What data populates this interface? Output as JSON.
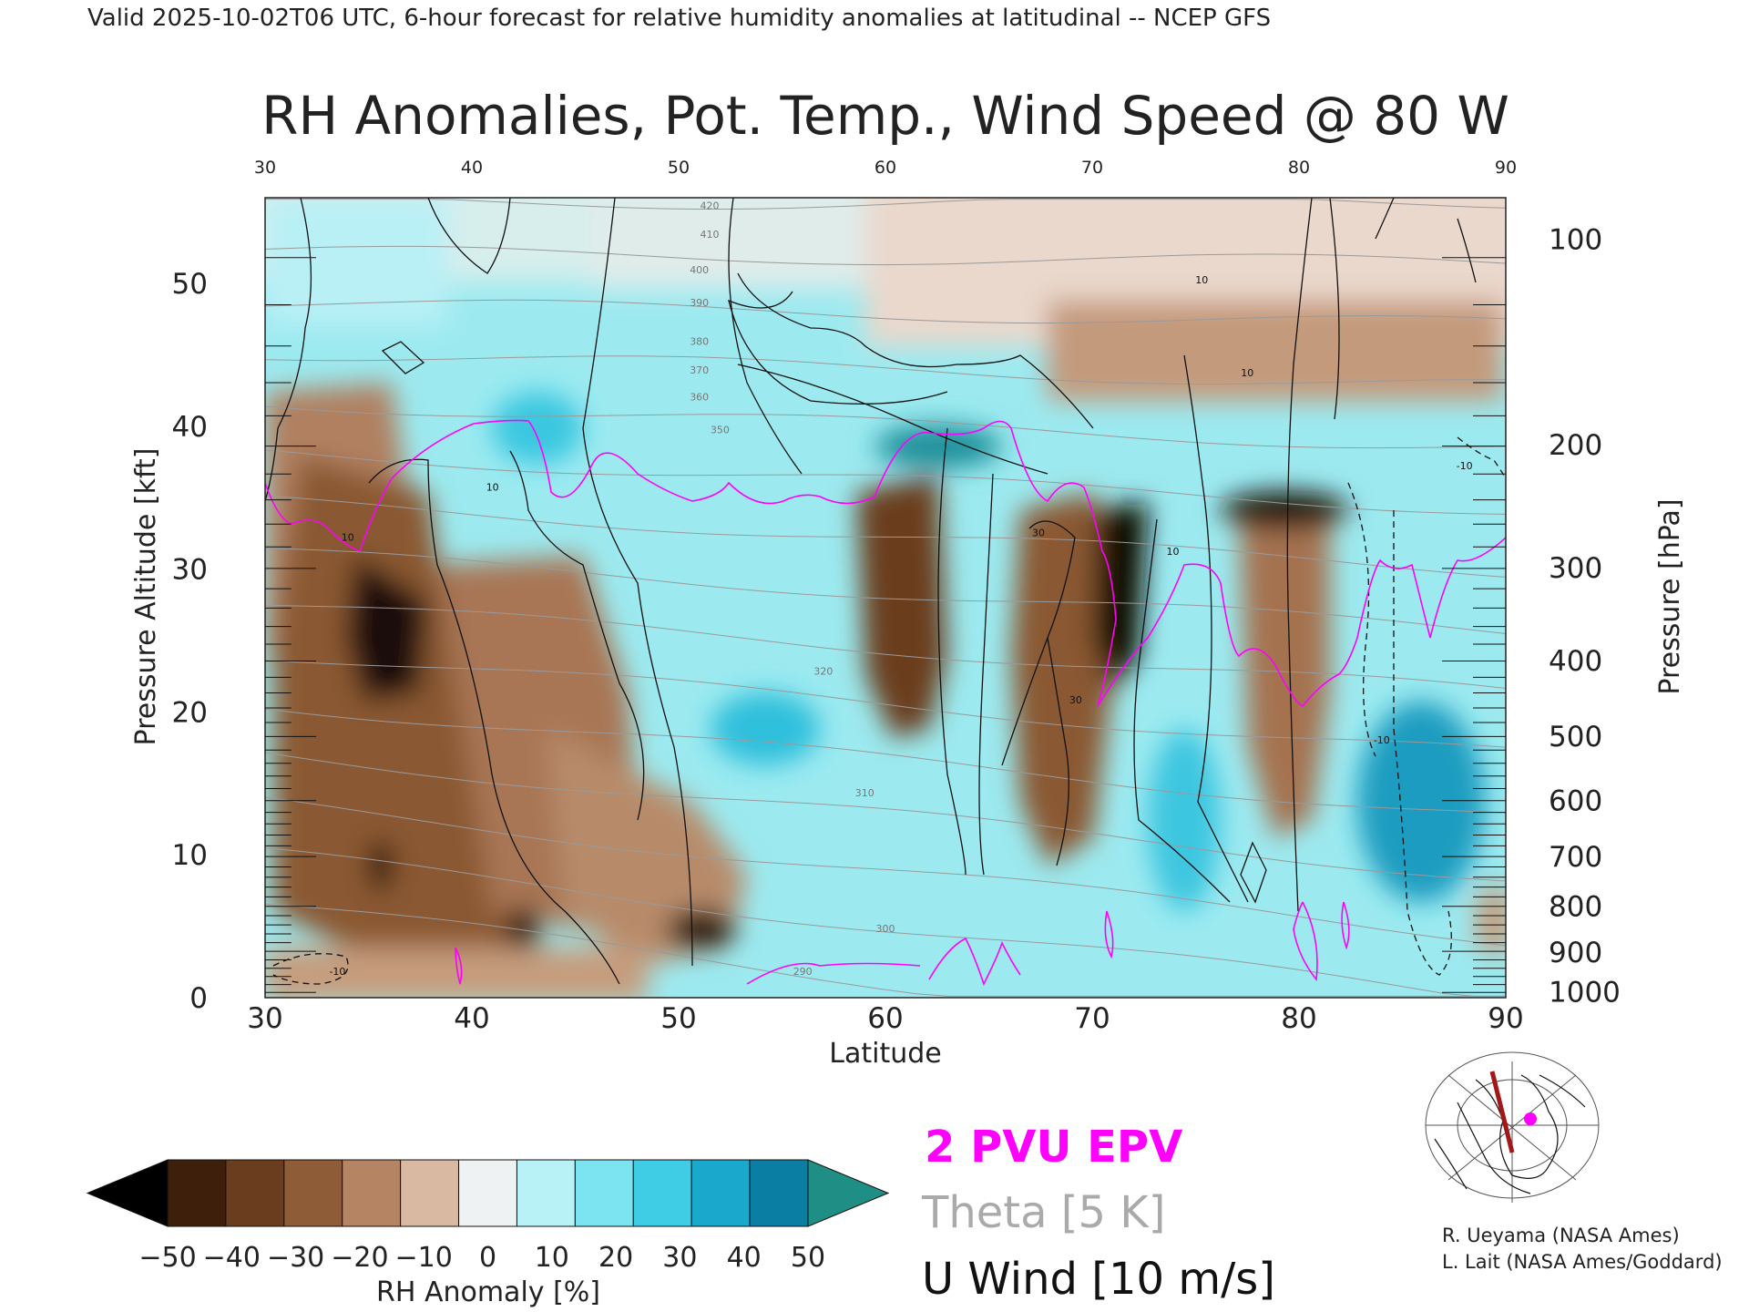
{
  "header": {
    "subtitle": "Valid 2025-10-02T06 UTC, 6-hour forecast for relative humidity anomalies at latitudinal -- NCEP GFS",
    "title": "RH Anomalies, Pot. Temp., Wind Speed @ 80 W"
  },
  "legend": {
    "epv": "2 PVU EPV",
    "theta": "Theta [5 K]",
    "uwind": "U Wind [10 m/s]",
    "epv_color": "#ff00ff",
    "theta_color": "#aaaaaa",
    "uwind_color": "#111111"
  },
  "credits": {
    "line1": "R. Ueyama (NASA Ames)",
    "line2": "L. Lait (NASA Ames/Goddard)"
  },
  "chart_data": {
    "type": "heatmap",
    "title": "RH Anomalies, Pot. Temp., Wind Speed @ 80 W",
    "xlabel": "Latitude",
    "ylabel": "Pressure Altitude [kft]",
    "y2label": "Pressure [hPa]",
    "xlim": [
      30,
      90
    ],
    "ylim": [
      0,
      56
    ],
    "x_ticks": [
      "30",
      "40",
      "50",
      "60",
      "70",
      "80",
      "90"
    ],
    "y_ticks": [
      "0",
      "10",
      "20",
      "30",
      "40",
      "50"
    ],
    "pressure_ticks": [
      {
        "label": "100",
        "kft": 53.1
      },
      {
        "label": "200",
        "kft": 38.7
      },
      {
        "label": "300",
        "kft": 30.1
      },
      {
        "label": "400",
        "kft": 23.6
      },
      {
        "label": "500",
        "kft": 18.3
      },
      {
        "label": "600",
        "kft": 13.8
      },
      {
        "label": "700",
        "kft": 9.9
      },
      {
        "label": "800",
        "kft": 6.4
      },
      {
        "label": "900",
        "kft": 3.2
      },
      {
        "label": "1000",
        "kft": 0.4
      }
    ],
    "colorbar": {
      "label": "RH Anomaly [%]",
      "ticks": [
        "-50",
        "-40",
        "-30",
        "-20",
        "-10",
        "0",
        "10",
        "20",
        "30",
        "40",
        "50"
      ],
      "colors": [
        "#000000",
        "#3d1f0c",
        "#6b3d1f",
        "#8f5c38",
        "#b58462",
        "#d9b9a2",
        "#eef2f2",
        "#b8f2f6",
        "#7ce4f0",
        "#3fcde5",
        "#1aa8cc",
        "#0b7fa3",
        "#1f8f86"
      ]
    },
    "theta_levels": [
      280,
      290,
      300,
      310,
      320,
      330,
      340,
      350,
      360,
      370,
      380,
      390,
      400,
      410,
      420
    ],
    "theta_labeled": [
      {
        "value": "290",
        "lat": 56,
        "kft": 1.6
      },
      {
        "value": "300",
        "lat": 60,
        "kft": 4.6
      },
      {
        "value": "310",
        "lat": 59,
        "kft": 14.1
      },
      {
        "value": "320",
        "lat": 57,
        "kft": 22.6
      },
      {
        "value": "350",
        "lat": 52,
        "kft": 39.5
      },
      {
        "value": "360",
        "lat": 51,
        "kft": 41.8
      },
      {
        "value": "370",
        "lat": 51,
        "kft": 43.7
      },
      {
        "value": "380",
        "lat": 51,
        "kft": 45.7
      },
      {
        "value": "390",
        "lat": 51,
        "kft": 48.4
      },
      {
        "value": "400",
        "lat": 51,
        "kft": 50.7
      },
      {
        "value": "410",
        "lat": 51.5,
        "kft": 53.2
      },
      {
        "value": "420",
        "lat": 51.5,
        "kft": 55.2
      }
    ],
    "uwind_labeled": [
      {
        "value": "10",
        "lat": 41,
        "kft": 35.5
      },
      {
        "value": "10",
        "lat": 34,
        "kft": 32
      },
      {
        "value": "10",
        "lat": 73.9,
        "kft": 31
      },
      {
        "value": "10",
        "lat": 77.5,
        "kft": 43.5
      },
      {
        "value": "10",
        "lat": 75.3,
        "kft": 50
      },
      {
        "value": "30",
        "lat": 67.4,
        "kft": 32.3
      },
      {
        "value": "30",
        "lat": 69.2,
        "kft": 20.6
      },
      {
        "value": "-10",
        "lat": 33.5,
        "kft": 1.6
      },
      {
        "value": "-10",
        "lat": 84,
        "kft": 17.8
      },
      {
        "value": "-10",
        "lat": 88,
        "kft": 37
      }
    ],
    "annotations": [
      "2 PVU EPV",
      "Theta [5 K]",
      "U Wind [10 m/s]"
    ]
  }
}
